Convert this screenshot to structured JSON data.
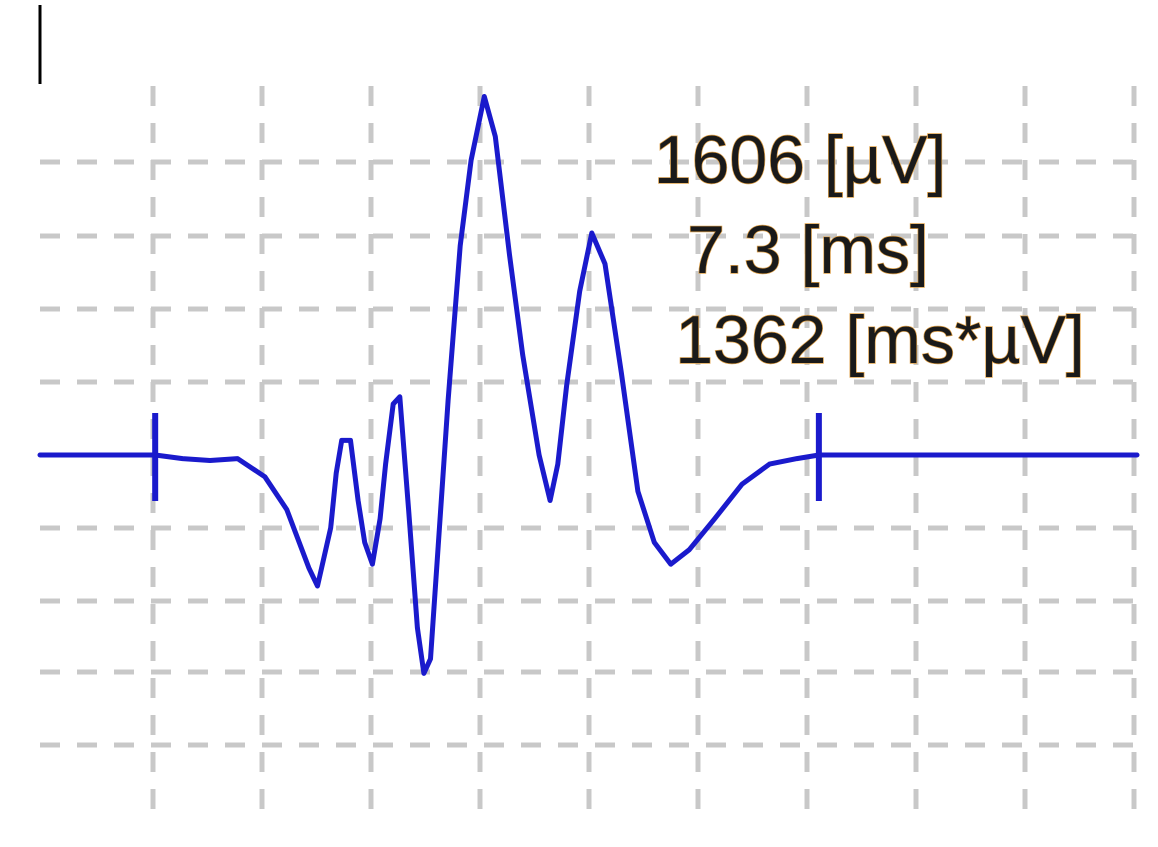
{
  "chart_data": {
    "type": "line",
    "title": "",
    "xlabel": "",
    "ylabel": "",
    "grid": true,
    "xlim": [
      0,
      10
    ],
    "ylim": [
      -2.0,
      2.0
    ],
    "annotations": [
      {
        "id": "amplitude",
        "text": "1606 [µV]"
      },
      {
        "id": "duration",
        "text": "7.3 [ms]"
      },
      {
        "id": "area",
        "text": "1362 [ms*µV]"
      }
    ],
    "markers": [
      1.05,
      7.1
    ],
    "series": [
      {
        "color": "#1a1acc",
        "points": [
          [
            0.0,
            0.0
          ],
          [
            1.05,
            0.0
          ],
          [
            1.3,
            -0.02
          ],
          [
            1.55,
            -0.03
          ],
          [
            1.8,
            -0.02
          ],
          [
            2.05,
            -0.12
          ],
          [
            2.25,
            -0.3
          ],
          [
            2.45,
            -0.62
          ],
          [
            2.53,
            -0.72
          ],
          [
            2.65,
            -0.4
          ],
          [
            2.7,
            -0.1
          ],
          [
            2.75,
            0.08
          ],
          [
            2.83,
            0.08
          ],
          [
            2.9,
            -0.25
          ],
          [
            2.96,
            -0.48
          ],
          [
            3.03,
            -0.6
          ],
          [
            3.1,
            -0.35
          ],
          [
            3.15,
            -0.05
          ],
          [
            3.22,
            0.28
          ],
          [
            3.28,
            0.32
          ],
          [
            3.36,
            -0.3
          ],
          [
            3.44,
            -0.95
          ],
          [
            3.5,
            -1.2
          ],
          [
            3.56,
            -1.12
          ],
          [
            3.63,
            -0.5
          ],
          [
            3.72,
            0.3
          ],
          [
            3.83,
            1.15
          ],
          [
            3.93,
            1.62
          ],
          [
            4.05,
            1.97
          ],
          [
            4.15,
            1.75
          ],
          [
            4.28,
            1.1
          ],
          [
            4.4,
            0.55
          ],
          [
            4.55,
            0.0
          ],
          [
            4.65,
            -0.25
          ],
          [
            4.72,
            -0.05
          ],
          [
            4.8,
            0.38
          ],
          [
            4.92,
            0.9
          ],
          [
            5.03,
            1.22
          ],
          [
            5.15,
            1.05
          ],
          [
            5.3,
            0.45
          ],
          [
            5.45,
            -0.2
          ],
          [
            5.6,
            -0.48
          ],
          [
            5.75,
            -0.6
          ],
          [
            5.92,
            -0.52
          ],
          [
            6.15,
            -0.35
          ],
          [
            6.4,
            -0.16
          ],
          [
            6.65,
            -0.05
          ],
          [
            6.9,
            -0.02
          ],
          [
            7.1,
            0.0
          ],
          [
            10.0,
            0.0
          ]
        ]
      }
    ]
  }
}
